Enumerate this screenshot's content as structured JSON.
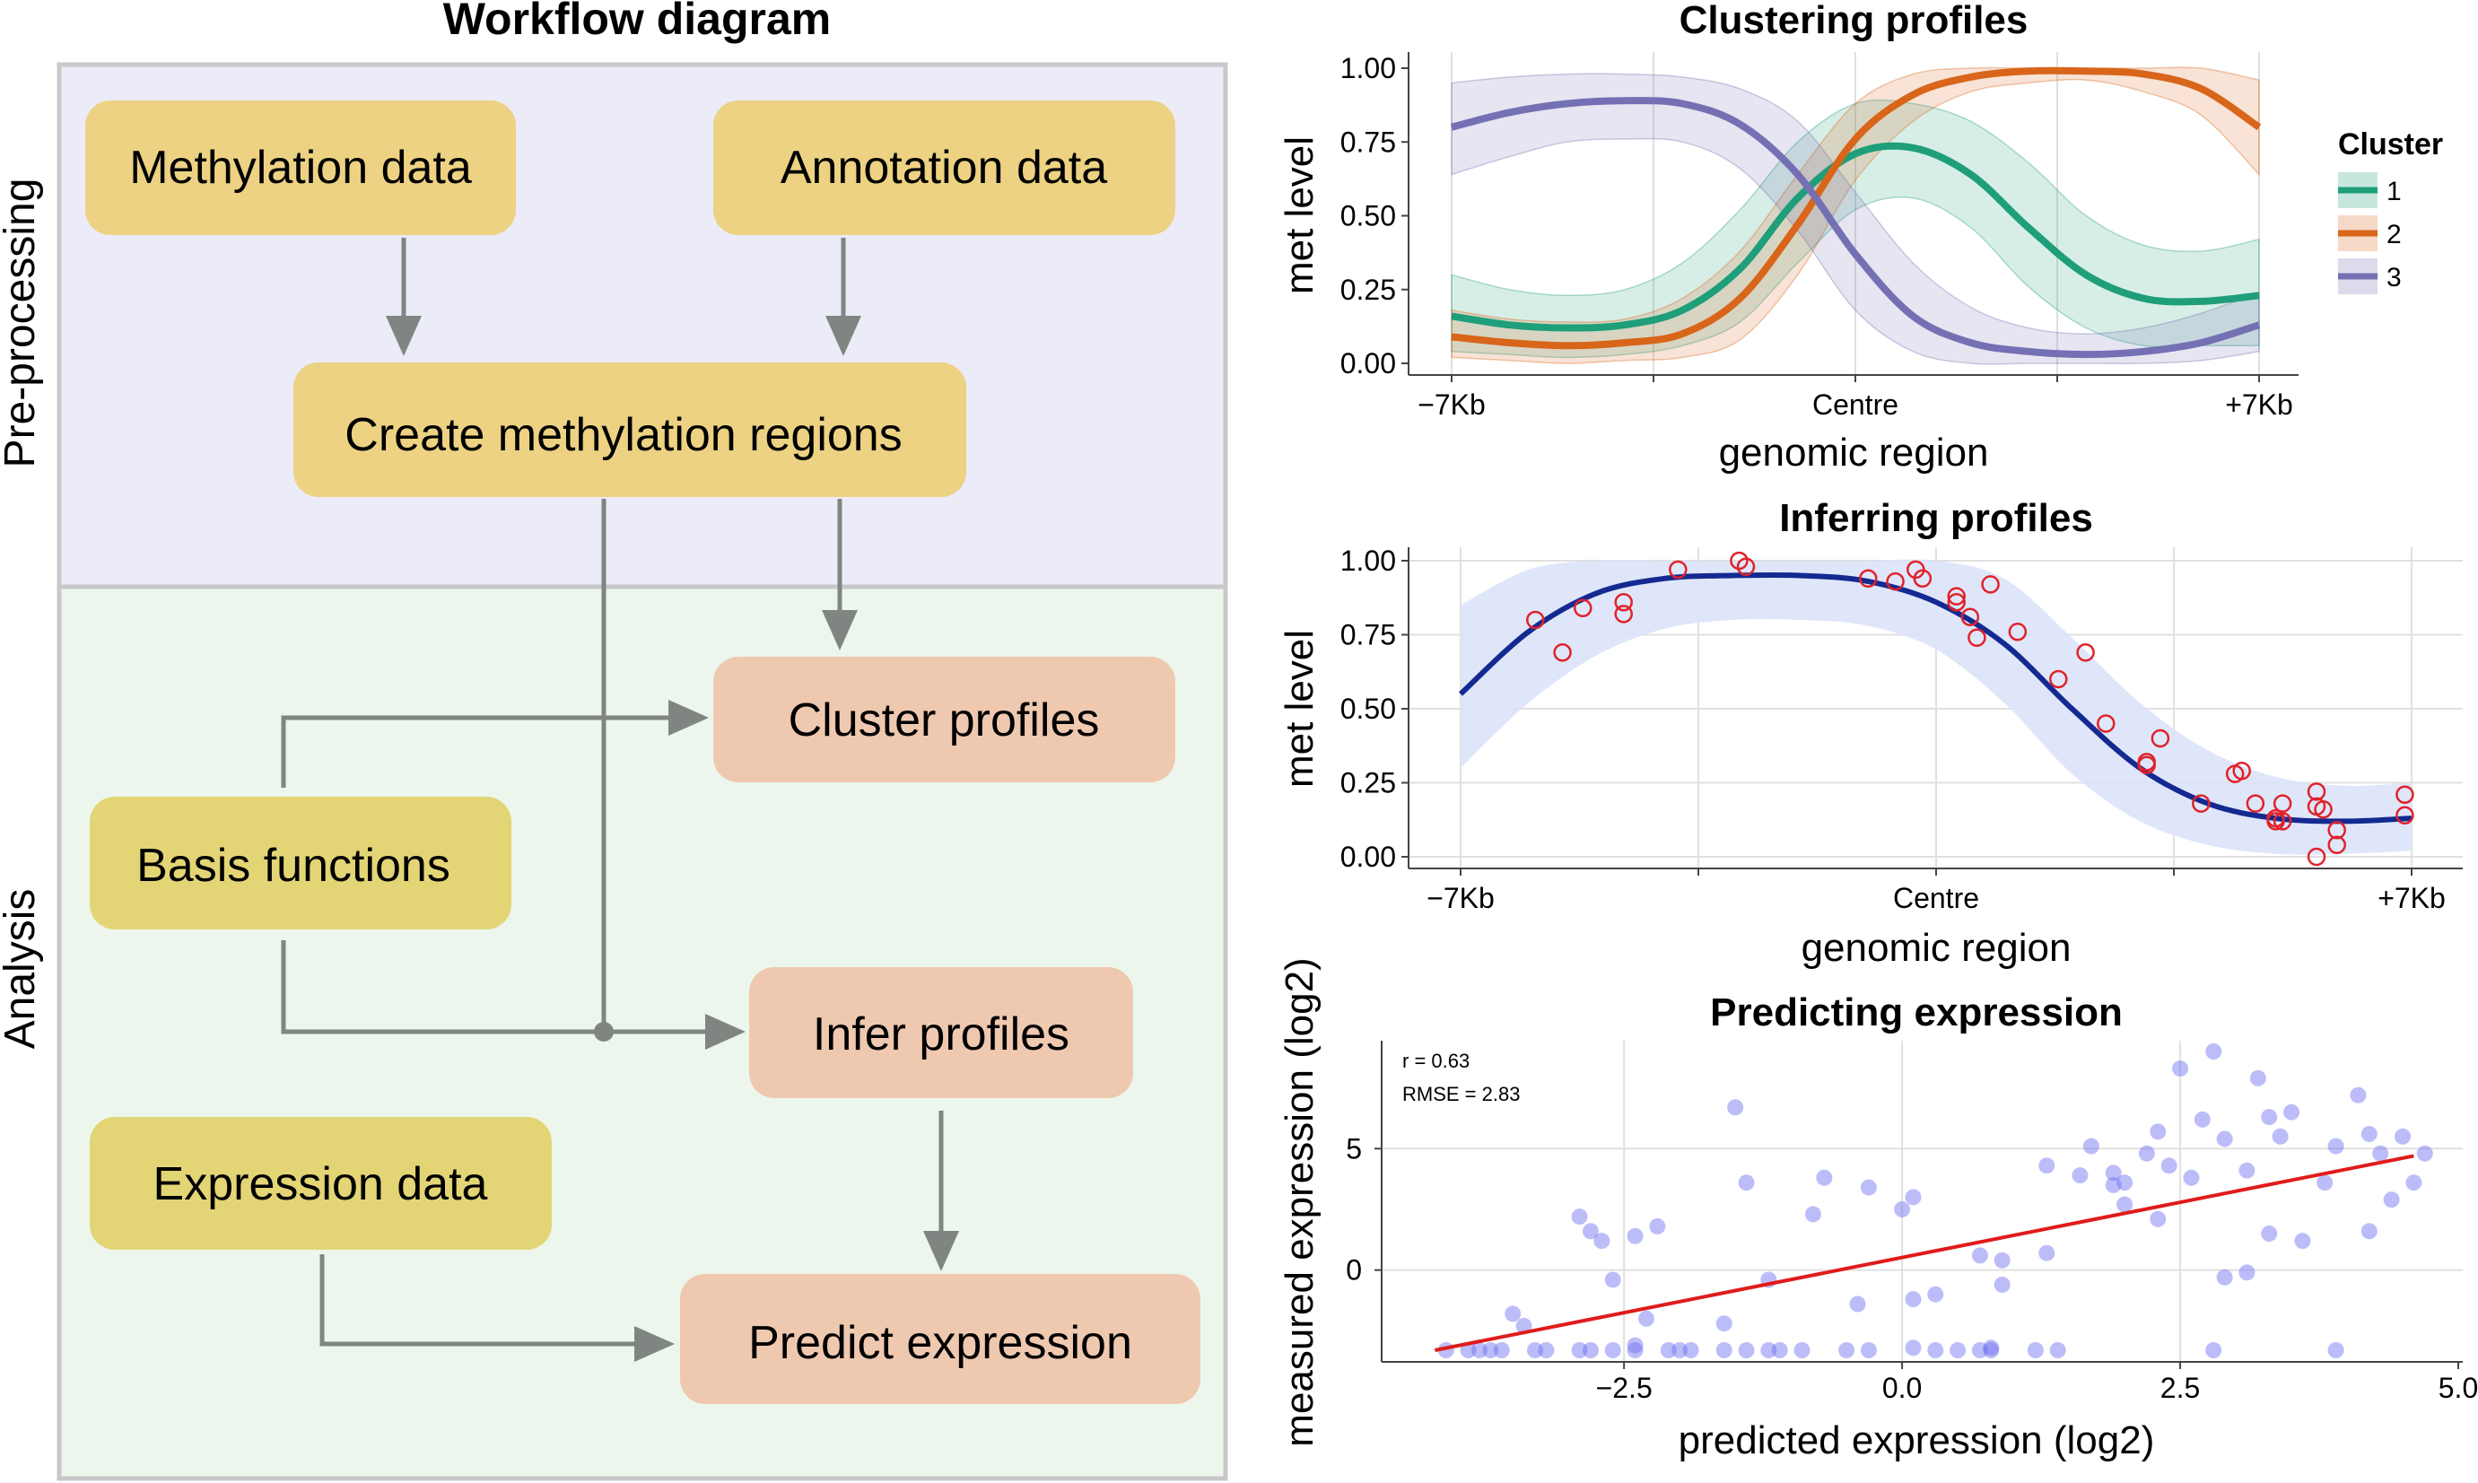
{
  "colors": {
    "preprocessing_bg": "#ecebf8",
    "analysis_bg": "#edf6ec",
    "panel_border": "#c8c8c8",
    "input_box": "#ecd282",
    "process_box": "#efc8b0",
    "arrow": "#7f8682",
    "cluster1": "#1f9e7a",
    "cluster2": "#d8651a",
    "cluster3": "#7570b3",
    "infer_line": "#142a91",
    "infer_band": "#dbe3f8",
    "infer_points": "#e0222a",
    "scatter_points": "#6b6cf0",
    "fit_line": "#e01b1b",
    "grid": "#e0e0e0"
  },
  "workflow": {
    "title": "Workflow diagram",
    "section_preprocessing": "Pre-processing",
    "section_analysis": "Analysis",
    "nodes": {
      "methylation_data": "Methylation data",
      "annotation_data": "Annotation data",
      "create_regions": "Create methylation regions",
      "cluster_profiles": "Cluster profiles",
      "basis_functions": "Basis functions",
      "infer_profiles": "Infer profiles",
      "expression_data": "Expression data",
      "predict_expression": "Predict expression"
    }
  },
  "chart_data": [
    {
      "type": "line",
      "title": "Clustering profiles",
      "xlabel": "genomic region",
      "ylabel": "met level",
      "x_ticks": [
        "−7Kb",
        "Centre",
        "+7Kb"
      ],
      "x_range": [
        -7,
        7
      ],
      "ylim": [
        0,
        1
      ],
      "y_ticks": [
        "0.00",
        "0.25",
        "0.50",
        "0.75",
        "1.00"
      ],
      "legend_title": "Cluster",
      "legend_position": "right",
      "series": [
        {
          "name": "1",
          "x": [
            -7,
            -6,
            -5,
            -4,
            -3,
            -2,
            -1,
            0,
            1,
            2,
            3,
            4,
            5,
            6,
            7
          ],
          "values": [
            0.16,
            0.13,
            0.12,
            0.13,
            0.18,
            0.32,
            0.56,
            0.71,
            0.73,
            0.64,
            0.46,
            0.3,
            0.22,
            0.21,
            0.23
          ],
          "band_upper": [
            0.3,
            0.25,
            0.23,
            0.25,
            0.34,
            0.52,
            0.75,
            0.88,
            0.88,
            0.82,
            0.68,
            0.5,
            0.4,
            0.38,
            0.42
          ],
          "band_lower": [
            0.04,
            0.03,
            0.02,
            0.03,
            0.06,
            0.14,
            0.34,
            0.52,
            0.56,
            0.46,
            0.26,
            0.12,
            0.06,
            0.06,
            0.06
          ]
        },
        {
          "name": "2",
          "x": [
            -7,
            -6,
            -5,
            -4,
            -3,
            -2,
            -1,
            0,
            1,
            2,
            3,
            4,
            5,
            6,
            7
          ],
          "values": [
            0.09,
            0.07,
            0.06,
            0.07,
            0.1,
            0.22,
            0.47,
            0.76,
            0.91,
            0.97,
            0.99,
            0.99,
            0.98,
            0.93,
            0.8
          ],
          "band_upper": [
            0.18,
            0.15,
            0.14,
            0.15,
            0.22,
            0.38,
            0.64,
            0.88,
            0.98,
            1.0,
            1.0,
            1.0,
            1.0,
            1.0,
            0.96
          ],
          "band_lower": [
            0.02,
            0.01,
            0.0,
            0.01,
            0.02,
            0.08,
            0.3,
            0.62,
            0.82,
            0.92,
            0.95,
            0.96,
            0.92,
            0.84,
            0.64
          ]
        },
        {
          "name": "3",
          "x": [
            -7,
            -6,
            -5,
            -4,
            -3,
            -2,
            -1,
            0,
            1,
            2,
            3,
            4,
            5,
            6,
            7
          ],
          "values": [
            0.8,
            0.85,
            0.88,
            0.89,
            0.88,
            0.81,
            0.64,
            0.37,
            0.16,
            0.07,
            0.04,
            0.03,
            0.04,
            0.07,
            0.13
          ],
          "band_upper": [
            0.95,
            0.97,
            0.98,
            0.98,
            0.97,
            0.93,
            0.82,
            0.58,
            0.34,
            0.19,
            0.12,
            0.1,
            0.12,
            0.17,
            0.24
          ],
          "band_lower": [
            0.64,
            0.7,
            0.75,
            0.76,
            0.75,
            0.66,
            0.45,
            0.18,
            0.04,
            0.0,
            0.0,
            0.0,
            0.0,
            0.01,
            0.04
          ]
        }
      ]
    },
    {
      "type": "scatter",
      "title": "Inferring profiles",
      "xlabel": "genomic region",
      "ylabel": "met level",
      "x_ticks": [
        "−7Kb",
        "Centre",
        "+7Kb"
      ],
      "x_range": [
        -7,
        7
      ],
      "ylim": [
        0,
        1
      ],
      "y_ticks": [
        "0.00",
        "0.25",
        "0.50",
        "0.75",
        "1.00"
      ],
      "curve": {
        "x": [
          -7,
          -6,
          -5,
          -4,
          -3,
          -2,
          -1,
          0,
          1,
          2,
          3,
          4,
          5,
          6,
          7
        ],
        "values": [
          0.55,
          0.76,
          0.89,
          0.94,
          0.95,
          0.95,
          0.93,
          0.86,
          0.72,
          0.5,
          0.3,
          0.18,
          0.13,
          0.12,
          0.13
        ],
        "band_upper": [
          0.85,
          0.97,
          1.0,
          1.0,
          1.0,
          1.0,
          1.0,
          1.0,
          0.94,
          0.74,
          0.52,
          0.36,
          0.27,
          0.24,
          0.25
        ],
        "band_lower": [
          0.3,
          0.52,
          0.68,
          0.77,
          0.8,
          0.8,
          0.78,
          0.7,
          0.52,
          0.28,
          0.12,
          0.04,
          0.01,
          0.01,
          0.02
        ]
      },
      "points": [
        {
          "x": -5.9,
          "y": 0.8
        },
        {
          "x": -5.5,
          "y": 0.69
        },
        {
          "x": -5.2,
          "y": 0.84
        },
        {
          "x": -4.6,
          "y": 0.86
        },
        {
          "x": -4.6,
          "y": 0.82
        },
        {
          "x": -3.8,
          "y": 0.97
        },
        {
          "x": -2.9,
          "y": 1.0
        },
        {
          "x": -2.8,
          "y": 0.98
        },
        {
          "x": -1.0,
          "y": 0.94
        },
        {
          "x": -0.6,
          "y": 0.93
        },
        {
          "x": -0.3,
          "y": 0.97
        },
        {
          "x": -0.2,
          "y": 0.94
        },
        {
          "x": 0.3,
          "y": 0.88
        },
        {
          "x": 0.3,
          "y": 0.86
        },
        {
          "x": 0.5,
          "y": 0.81
        },
        {
          "x": 0.6,
          "y": 0.74
        },
        {
          "x": 0.8,
          "y": 0.92
        },
        {
          "x": 1.2,
          "y": 0.76
        },
        {
          "x": 1.8,
          "y": 0.6
        },
        {
          "x": 2.2,
          "y": 0.69
        },
        {
          "x": 2.5,
          "y": 0.45
        },
        {
          "x": 3.1,
          "y": 0.31
        },
        {
          "x": 3.1,
          "y": 0.32
        },
        {
          "x": 3.3,
          "y": 0.4
        },
        {
          "x": 3.9,
          "y": 0.18
        },
        {
          "x": 4.4,
          "y": 0.28
        },
        {
          "x": 4.5,
          "y": 0.29
        },
        {
          "x": 4.7,
          "y": 0.18
        },
        {
          "x": 5.0,
          "y": 0.12
        },
        {
          "x": 5.0,
          "y": 0.13
        },
        {
          "x": 5.1,
          "y": 0.12
        },
        {
          "x": 5.1,
          "y": 0.18
        },
        {
          "x": 5.6,
          "y": 0.17
        },
        {
          "x": 5.6,
          "y": 0.22
        },
        {
          "x": 5.7,
          "y": 0.16
        },
        {
          "x": 5.6,
          "y": 0.0
        },
        {
          "x": 5.9,
          "y": 0.04
        },
        {
          "x": 5.9,
          "y": 0.09
        },
        {
          "x": 6.9,
          "y": 0.21
        },
        {
          "x": 6.9,
          "y": 0.14
        }
      ]
    },
    {
      "type": "scatter",
      "title": "Predicting expression",
      "xlabel": "predicted expression (log2)",
      "ylabel": "measured expression (log2)",
      "xlim": [
        -4.3,
        5.0
      ],
      "ylim": [
        -3.8,
        9.5
      ],
      "x_ticks": [
        "−2.5",
        "0.0",
        "2.5",
        "5.0"
      ],
      "y_ticks": [
        "0",
        "5"
      ],
      "annotation_r": "r = 0.63",
      "annotation_rmse": "RMSE = 2.83",
      "fit_line": {
        "x": [
          -4.2,
          4.6
        ],
        "y": [
          -3.3,
          4.7
        ]
      },
      "points": [
        {
          "x": -4.1,
          "y": -3.3
        },
        {
          "x": -3.9,
          "y": -3.3
        },
        {
          "x": -3.8,
          "y": -3.3
        },
        {
          "x": -3.6,
          "y": -3.3
        },
        {
          "x": -3.3,
          "y": -3.3
        },
        {
          "x": -3.2,
          "y": -3.3
        },
        {
          "x": -2.9,
          "y": -3.3
        },
        {
          "x": -2.8,
          "y": -3.3
        },
        {
          "x": -2.6,
          "y": -3.3
        },
        {
          "x": -2.4,
          "y": -3.3
        },
        {
          "x": -2.1,
          "y": -3.3
        },
        {
          "x": -2.0,
          "y": -3.3
        },
        {
          "x": -1.9,
          "y": -3.3
        },
        {
          "x": -1.6,
          "y": -3.3
        },
        {
          "x": -1.4,
          "y": -3.3
        },
        {
          "x": -1.2,
          "y": -3.3
        },
        {
          "x": -1.1,
          "y": -3.3
        },
        {
          "x": -0.9,
          "y": -3.3
        },
        {
          "x": -0.5,
          "y": -3.3
        },
        {
          "x": -0.3,
          "y": -3.3
        },
        {
          "x": 0.3,
          "y": -3.3
        },
        {
          "x": 0.5,
          "y": -3.3
        },
        {
          "x": 0.7,
          "y": -3.3
        },
        {
          "x": 0.8,
          "y": -3.3
        },
        {
          "x": 1.2,
          "y": -3.3
        },
        {
          "x": 1.4,
          "y": -3.3
        },
        {
          "x": 2.8,
          "y": -3.3
        },
        {
          "x": 3.9,
          "y": -3.3
        },
        {
          "x": -3.5,
          "y": -1.8
        },
        {
          "x": -3.4,
          "y": -2.3
        },
        {
          "x": -2.9,
          "y": 2.2
        },
        {
          "x": -2.8,
          "y": 1.6
        },
        {
          "x": -2.7,
          "y": 1.2
        },
        {
          "x": -2.6,
          "y": -0.4
        },
        {
          "x": -2.4,
          "y": 1.4
        },
        {
          "x": -2.2,
          "y": 1.8
        },
        {
          "x": -2.3,
          "y": -2.0
        },
        {
          "x": -1.6,
          "y": -2.2
        },
        {
          "x": -1.5,
          "y": 6.7
        },
        {
          "x": -1.4,
          "y": 3.6
        },
        {
          "x": -1.2,
          "y": -0.4
        },
        {
          "x": -0.8,
          "y": 2.3
        },
        {
          "x": -0.7,
          "y": 3.8
        },
        {
          "x": -0.4,
          "y": -1.4
        },
        {
          "x": -0.3,
          "y": 3.4
        },
        {
          "x": 0.0,
          "y": 2.5
        },
        {
          "x": 0.1,
          "y": 3.0
        },
        {
          "x": 0.1,
          "y": -1.2
        },
        {
          "x": 0.3,
          "y": -1.0
        },
        {
          "x": 0.7,
          "y": 0.6
        },
        {
          "x": 0.9,
          "y": -0.6
        },
        {
          "x": 0.9,
          "y": 0.4
        },
        {
          "x": 1.3,
          "y": 4.3
        },
        {
          "x": 1.3,
          "y": 0.7
        },
        {
          "x": 1.6,
          "y": 3.9
        },
        {
          "x": 1.7,
          "y": 5.1
        },
        {
          "x": 1.9,
          "y": 3.5
        },
        {
          "x": 2.0,
          "y": 2.7
        },
        {
          "x": 2.0,
          "y": 3.6
        },
        {
          "x": 2.2,
          "y": 4.8
        },
        {
          "x": 2.3,
          "y": 5.7
        },
        {
          "x": 2.4,
          "y": 4.3
        },
        {
          "x": 2.6,
          "y": 3.8
        },
        {
          "x": 2.7,
          "y": 6.2
        },
        {
          "x": 2.9,
          "y": 5.4
        },
        {
          "x": 3.1,
          "y": 4.1
        },
        {
          "x": 3.2,
          "y": 7.9
        },
        {
          "x": 3.3,
          "y": 6.3
        },
        {
          "x": 3.4,
          "y": 5.5
        },
        {
          "x": 3.5,
          "y": 6.5
        },
        {
          "x": 3.6,
          "y": 1.2
        },
        {
          "x": 3.8,
          "y": 3.6
        },
        {
          "x": 3.9,
          "y": 5.1
        },
        {
          "x": 4.1,
          "y": 7.2
        },
        {
          "x": 4.2,
          "y": 5.6
        },
        {
          "x": 4.3,
          "y": 4.8
        },
        {
          "x": 4.4,
          "y": 2.9
        },
        {
          "x": 4.5,
          "y": 5.5
        },
        {
          "x": 4.6,
          "y": 3.6
        },
        {
          "x": 3.3,
          "y": 1.5
        },
        {
          "x": 3.1,
          "y": -0.1
        },
        {
          "x": 2.9,
          "y": -0.3
        },
        {
          "x": 2.3,
          "y": 2.1
        },
        {
          "x": 4.2,
          "y": 1.6
        },
        {
          "x": 4.7,
          "y": 4.8
        },
        {
          "x": 2.5,
          "y": 8.3
        },
        {
          "x": 2.8,
          "y": 9.0
        },
        {
          "x": -2.4,
          "y": -3.1
        },
        {
          "x": -3.7,
          "y": -3.3
        },
        {
          "x": 0.1,
          "y": -3.2
        },
        {
          "x": 0.8,
          "y": -3.2
        },
        {
          "x": 1.9,
          "y": 4.0
        }
      ]
    }
  ]
}
